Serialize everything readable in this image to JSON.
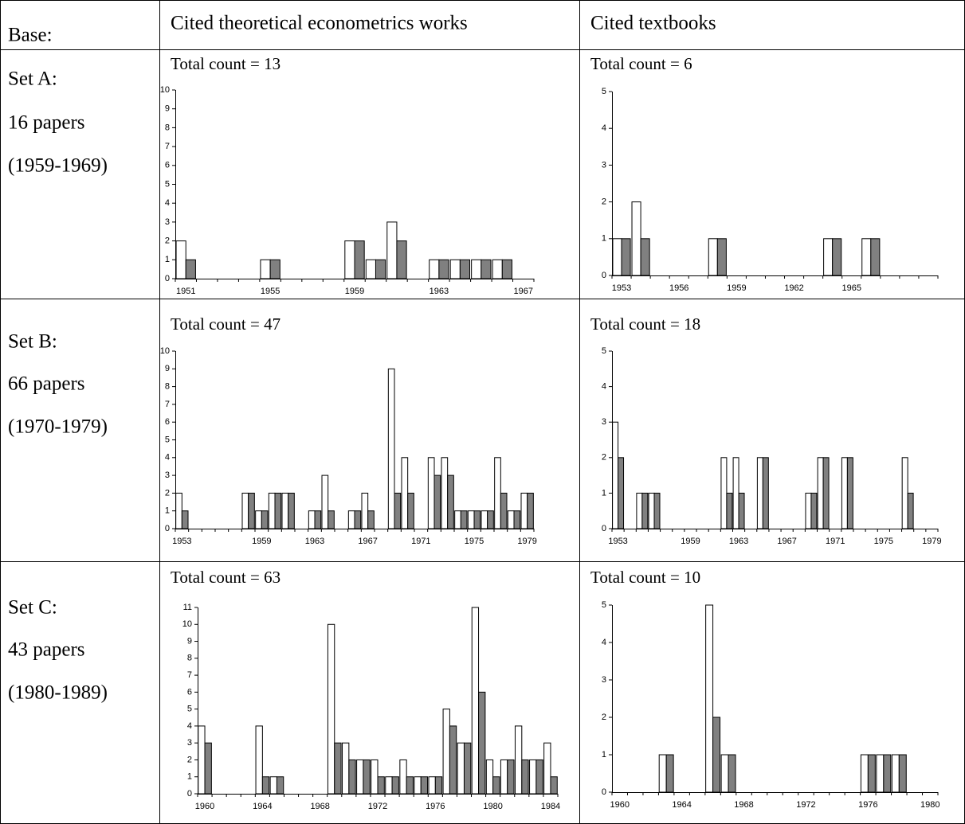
{
  "table": {
    "header": [
      "Base:",
      "Cited theoretical econometrics works",
      "Cited textbooks"
    ],
    "rows": [
      [
        "Set A:",
        "16 papers",
        "(1959-1969)"
      ],
      [
        "Set B:",
        "66 papers",
        "(1970-1979)"
      ],
      [
        "Set C:",
        "43 papers",
        "(1980-1989)"
      ]
    ]
  },
  "chart_data": [
    {
      "type": "bar",
      "title": "Total count = 13",
      "categories": [
        "1951",
        null,
        null,
        null,
        "1955",
        null,
        null,
        null,
        "1959",
        null,
        null,
        null,
        "1963",
        null,
        null,
        null,
        "1967"
      ],
      "series": [
        {
          "color": "#ffffff",
          "values": [
            2,
            0,
            0,
            0,
            1,
            0,
            0,
            0,
            2,
            1,
            3,
            0,
            1,
            1,
            1,
            1,
            0
          ]
        },
        {
          "color": "#808080",
          "values": [
            1,
            0,
            0,
            0,
            1,
            0,
            0,
            0,
            2,
            1,
            2,
            0,
            1,
            1,
            1,
            1,
            0
          ]
        }
      ],
      "ylim": [
        0,
        10
      ],
      "yticks": [
        0,
        1,
        2,
        3,
        4,
        5,
        6,
        7,
        8,
        9,
        10
      ]
    },
    {
      "type": "bar",
      "title": "Total count = 6",
      "categories": [
        "1953",
        null,
        null,
        "1956",
        null,
        null,
        "1959",
        null,
        null,
        "1962",
        null,
        null,
        "1965",
        null,
        null,
        null,
        null
      ],
      "series": [
        {
          "color": "#ffffff",
          "values": [
            1,
            2,
            0,
            0,
            0,
            1,
            0,
            0,
            0,
            0,
            0,
            1,
            0,
            1,
            0,
            0,
            0
          ]
        },
        {
          "color": "#808080",
          "values": [
            1,
            1,
            0,
            0,
            0,
            1,
            0,
            0,
            0,
            0,
            0,
            1,
            0,
            1,
            0,
            0,
            0
          ]
        }
      ],
      "ylim": [
        0,
        5
      ],
      "yticks": [
        0,
        1,
        2,
        3,
        4,
        5
      ]
    },
    {
      "type": "bar",
      "title": "Total count = 47",
      "categories": [
        "1953",
        null,
        null,
        null,
        null,
        null,
        "1959",
        null,
        null,
        null,
        "1963",
        null,
        null,
        null,
        "1967",
        null,
        null,
        null,
        "1971",
        null,
        null,
        null,
        "1975",
        null,
        null,
        null,
        "1979"
      ],
      "series": [
        {
          "color": "#ffffff",
          "values": [
            2,
            0,
            0,
            0,
            0,
            2,
            1,
            2,
            2,
            0,
            1,
            3,
            0,
            1,
            2,
            0,
            9,
            4,
            0,
            4,
            4,
            1,
            1,
            1,
            4,
            1,
            2
          ]
        },
        {
          "color": "#808080",
          "values": [
            1,
            0,
            0,
            0,
            0,
            2,
            1,
            2,
            2,
            0,
            1,
            1,
            0,
            1,
            1,
            0,
            2,
            2,
            0,
            3,
            3,
            1,
            1,
            1,
            2,
            1,
            2
          ]
        }
      ],
      "ylim": [
        0,
        10
      ],
      "yticks": [
        0,
        1,
        2,
        3,
        4,
        5,
        6,
        7,
        8,
        9,
        10
      ]
    },
    {
      "type": "bar",
      "title": "Total count = 18",
      "categories": [
        "1953",
        null,
        null,
        null,
        null,
        null,
        "1959",
        null,
        null,
        null,
        "1963",
        null,
        null,
        null,
        "1967",
        null,
        null,
        null,
        "1971",
        null,
        null,
        null,
        "1975",
        null,
        null,
        null,
        "1979"
      ],
      "series": [
        {
          "color": "#ffffff",
          "values": [
            3,
            0,
            1,
            1,
            0,
            0,
            0,
            0,
            0,
            2,
            2,
            0,
            2,
            0,
            0,
            0,
            1,
            2,
            0,
            2,
            0,
            0,
            0,
            0,
            2,
            0,
            0
          ]
        },
        {
          "color": "#808080",
          "values": [
            2,
            0,
            1,
            1,
            0,
            0,
            0,
            0,
            0,
            1,
            1,
            0,
            2,
            0,
            0,
            0,
            1,
            2,
            0,
            2,
            0,
            0,
            0,
            0,
            1,
            0,
            0
          ]
        }
      ],
      "ylim": [
        0,
        5
      ],
      "yticks": [
        0,
        1,
        2,
        3,
        4,
        5
      ]
    },
    {
      "type": "bar",
      "title": "Total count = 63",
      "categories": [
        "1960",
        null,
        null,
        null,
        "1964",
        null,
        null,
        null,
        "1968",
        null,
        null,
        null,
        "1972",
        null,
        null,
        null,
        "1976",
        null,
        null,
        null,
        "1980",
        null,
        null,
        null,
        "1984"
      ],
      "series": [
        {
          "color": "#ffffff",
          "values": [
            4,
            0,
            0,
            0,
            4,
            1,
            0,
            0,
            0,
            10,
            3,
            2,
            2,
            1,
            2,
            1,
            1,
            5,
            3,
            11,
            2,
            2,
            4,
            2,
            3
          ]
        },
        {
          "color": "#808080",
          "values": [
            3,
            0,
            0,
            0,
            1,
            1,
            0,
            0,
            0,
            3,
            2,
            2,
            1,
            1,
            1,
            1,
            1,
            4,
            3,
            6,
            1,
            2,
            2,
            2,
            1
          ]
        }
      ],
      "ylim": [
        0,
        11
      ],
      "yticks": [
        0,
        1,
        2,
        3,
        4,
        5,
        6,
        7,
        8,
        9,
        10,
        11
      ]
    },
    {
      "type": "bar",
      "title": "Total count = 10",
      "categories": [
        "1960",
        null,
        null,
        null,
        "1964",
        null,
        null,
        null,
        "1968",
        null,
        null,
        null,
        "1972",
        null,
        null,
        null,
        "1976",
        null,
        null,
        null,
        "1980"
      ],
      "series": [
        {
          "color": "#ffffff",
          "values": [
            0,
            0,
            0,
            1,
            0,
            0,
            5,
            1,
            0,
            0,
            0,
            0,
            0,
            0,
            0,
            0,
            1,
            1,
            1,
            0,
            0
          ]
        },
        {
          "color": "#808080",
          "values": [
            0,
            0,
            0,
            1,
            0,
            0,
            2,
            1,
            0,
            0,
            0,
            0,
            0,
            0,
            0,
            0,
            1,
            1,
            1,
            0,
            0
          ]
        }
      ],
      "ylim": [
        0,
        5
      ],
      "yticks": [
        0,
        1,
        2,
        3,
        4,
        5
      ]
    }
  ]
}
